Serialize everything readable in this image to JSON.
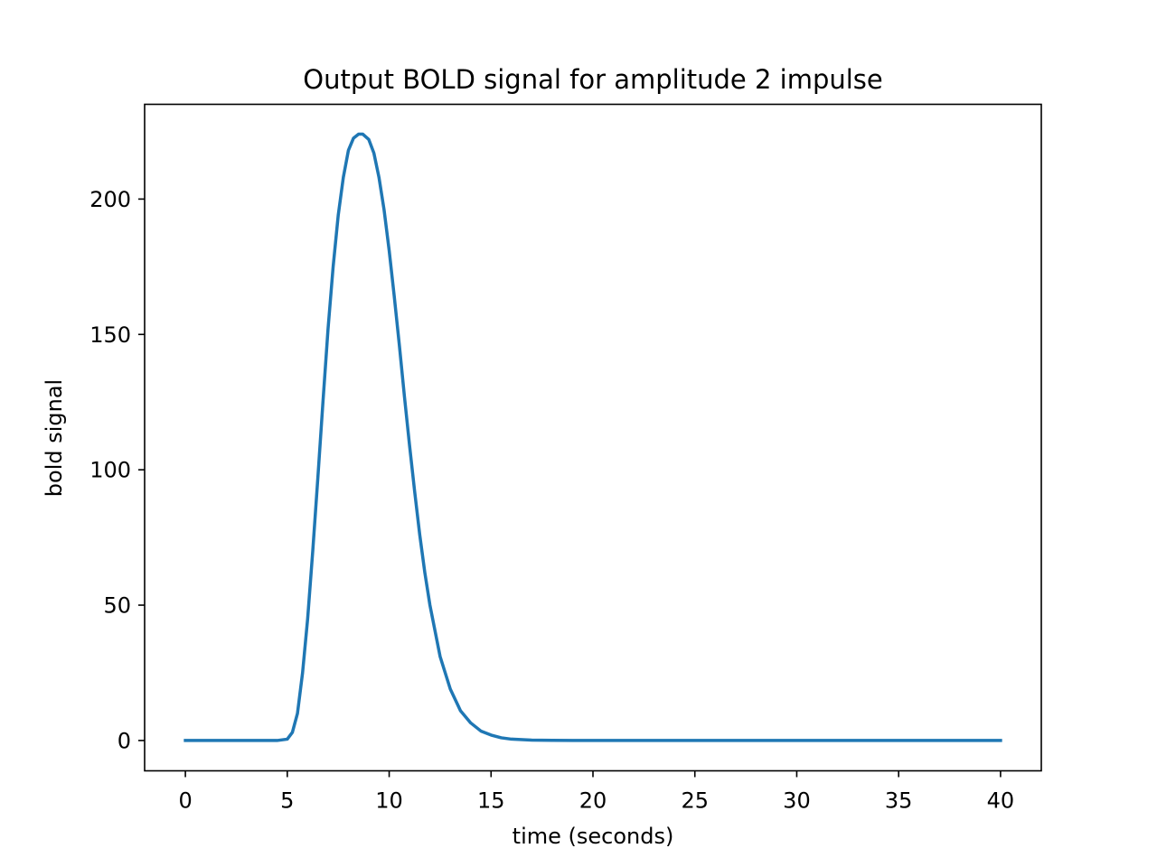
{
  "chart_data": {
    "type": "line",
    "title": "Output BOLD signal for amplitude 2 impulse",
    "xlabel": "time (seconds)",
    "ylabel": "bold signal",
    "xlim": [
      -2,
      42
    ],
    "ylim": [
      -11.2,
      235
    ],
    "xticks": [
      0,
      5,
      10,
      15,
      20,
      25,
      30,
      35,
      40
    ],
    "yticks": [
      0,
      50,
      100,
      150,
      200
    ],
    "grid": false,
    "legend": "none",
    "series": [
      {
        "color": "#1f77b4",
        "x": [
          0,
          1,
          2,
          3,
          4,
          4.5,
          5,
          5.25,
          5.5,
          5.75,
          6,
          6.25,
          6.5,
          6.75,
          7,
          7.25,
          7.5,
          7.75,
          8,
          8.25,
          8.5,
          8.7,
          9,
          9.25,
          9.5,
          9.75,
          10,
          10.25,
          10.5,
          10.75,
          11,
          11.25,
          11.5,
          11.75,
          12,
          12.5,
          13,
          13.5,
          14,
          14.5,
          15,
          15.5,
          16,
          17,
          18,
          19,
          20,
          22,
          25,
          30,
          35,
          40
        ],
        "y": [
          0,
          0,
          0,
          0,
          0,
          0,
          0.5,
          3,
          10,
          25,
          45,
          70,
          97,
          125,
          152,
          175,
          194,
          208,
          218,
          222.5,
          224,
          224,
          222,
          217,
          208,
          196,
          181,
          164,
          146,
          127,
          109,
          92,
          76,
          62,
          50,
          31,
          19,
          11,
          6.5,
          3.5,
          2,
          1,
          0.5,
          0.15,
          0.05,
          0,
          0,
          0,
          0,
          0,
          0,
          0
        ]
      }
    ]
  }
}
